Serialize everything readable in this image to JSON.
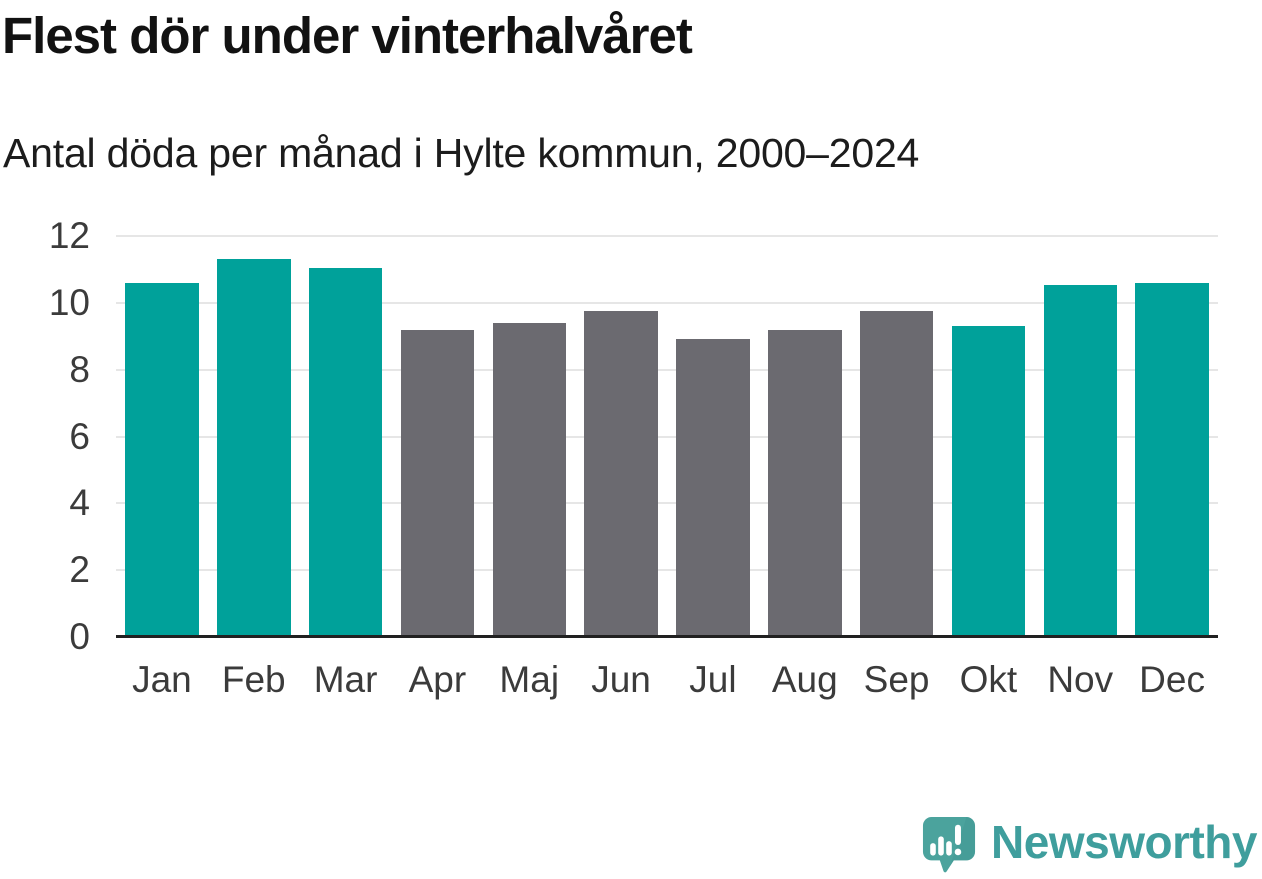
{
  "chart_data": {
    "type": "bar",
    "title": "Flest dör under vinterhalvåret",
    "subtitle": "Antal döda per månad i Hylte kommun, 2000–2024",
    "categories": [
      "Jan",
      "Feb",
      "Mar",
      "Apr",
      "Maj",
      "Jun",
      "Jul",
      "Aug",
      "Sep",
      "Okt",
      "Nov",
      "Dec"
    ],
    "values": [
      10.6,
      11.32,
      11.04,
      9.2,
      9.4,
      9.76,
      8.92,
      9.2,
      9.76,
      9.32,
      10.52,
      10.6
    ],
    "bar_colors": [
      "#00a19a",
      "#00a19a",
      "#00a19a",
      "#6b6a70",
      "#6b6a70",
      "#6b6a70",
      "#6b6a70",
      "#6b6a70",
      "#6b6a70",
      "#00a19a",
      "#00a19a",
      "#00a19a"
    ],
    "xlabel": "",
    "ylabel": "",
    "ylim": [
      0,
      12
    ],
    "yticks": [
      0,
      2,
      4,
      6,
      8,
      10,
      12
    ],
    "ytick_labels": [
      "0",
      "2",
      "4",
      "6",
      "8",
      "10",
      "12"
    ],
    "grid": true,
    "legend": null,
    "annotation": "Vintermånader (Jan–Mar, Okt–Dec) i turkos, sommarmånader (Apr–Sep) i grått"
  },
  "colors": {
    "winter_bar": "#00a19a",
    "summer_bar": "#6b6a70",
    "gridline": "#e6e6e6",
    "axis_line": "#212121",
    "tick_label": "#3b3b3b",
    "title_text": "#121212",
    "logo_mark": "#4ba39d",
    "logo_mark_shade": "#3e938e",
    "logo_glyph": "#ffffff",
    "logo_text": "#3f9e9d"
  },
  "branding": {
    "logo_text": "Newsworthy",
    "logo_icon": "newsworthy-speech-bubble-bar-chart-icon"
  }
}
